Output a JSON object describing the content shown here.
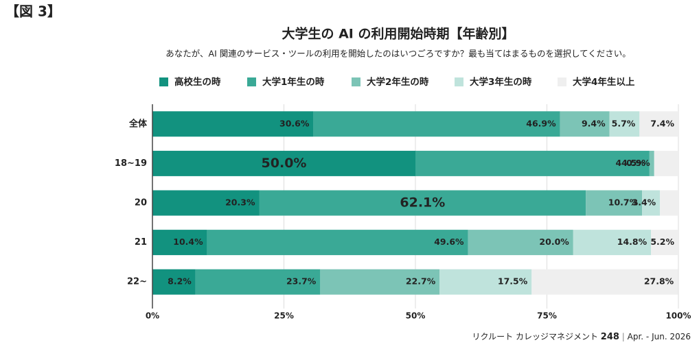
{
  "figure_label": "【図 3】",
  "footer": {
    "publisher": "リクルート カレッジマネジメント",
    "issue": "248",
    "separator": "|",
    "date": "Apr. - Jun. 2026"
  },
  "chart_data": {
    "type": "stacked-barh",
    "title": "大学生の AI の利用開始時期【年齢別】",
    "subtitle": "あなたが、AI 関連のサービス・ツールの利用を開始したのはいつごろですか？最も当てはまるものを選択してください。",
    "categories": [
      "全体",
      "18~19",
      "20",
      "21",
      "22~"
    ],
    "series": [
      {
        "name": "高校生の時",
        "color": "#12927f",
        "values": [
          30.6,
          50.0,
          20.3,
          10.4,
          8.2
        ],
        "value_labels": [
          "30.6%",
          "50.0%",
          "20.3%",
          "10.4%",
          "8.2%"
        ]
      },
      {
        "name": "大学1年生の時",
        "color": "#3aa996",
        "values": [
          46.9,
          44.5,
          62.1,
          49.6,
          23.7
        ],
        "value_labels": [
          "46.9%",
          "44.5%",
          "62.1%",
          "49.6%",
          "23.7%"
        ]
      },
      {
        "name": "大学2年生の時",
        "color": "#7cc4b6",
        "values": [
          9.4,
          0.9,
          10.7,
          20.0,
          22.7
        ],
        "value_labels": [
          "9.4%",
          "0.9%",
          "10.7%",
          "20.0%",
          "22.7%"
        ]
      },
      {
        "name": "大学3年生の時",
        "color": "#bfe3dc",
        "values": [
          5.7,
          0,
          3.4,
          14.8,
          17.5
        ],
        "value_labels": [
          "5.7%",
          null,
          "3.4%",
          "14.8%",
          "17.5%"
        ]
      },
      {
        "name": "大学4年生以上",
        "color": "#efefef",
        "values": [
          7.4,
          4.6,
          3.5,
          5.2,
          27.8
        ],
        "value_labels": [
          "7.4%",
          null,
          null,
          "5.2%",
          "27.8%"
        ]
      }
    ],
    "xlim": [
      0,
      100
    ],
    "xticks": [
      {
        "value": 0,
        "label": "0%"
      },
      {
        "value": 25,
        "label": "25%"
      },
      {
        "value": 50,
        "label": "50%"
      },
      {
        "value": 75,
        "label": "75%"
      },
      {
        "value": 100,
        "label": "100%"
      }
    ],
    "grid": true
  }
}
